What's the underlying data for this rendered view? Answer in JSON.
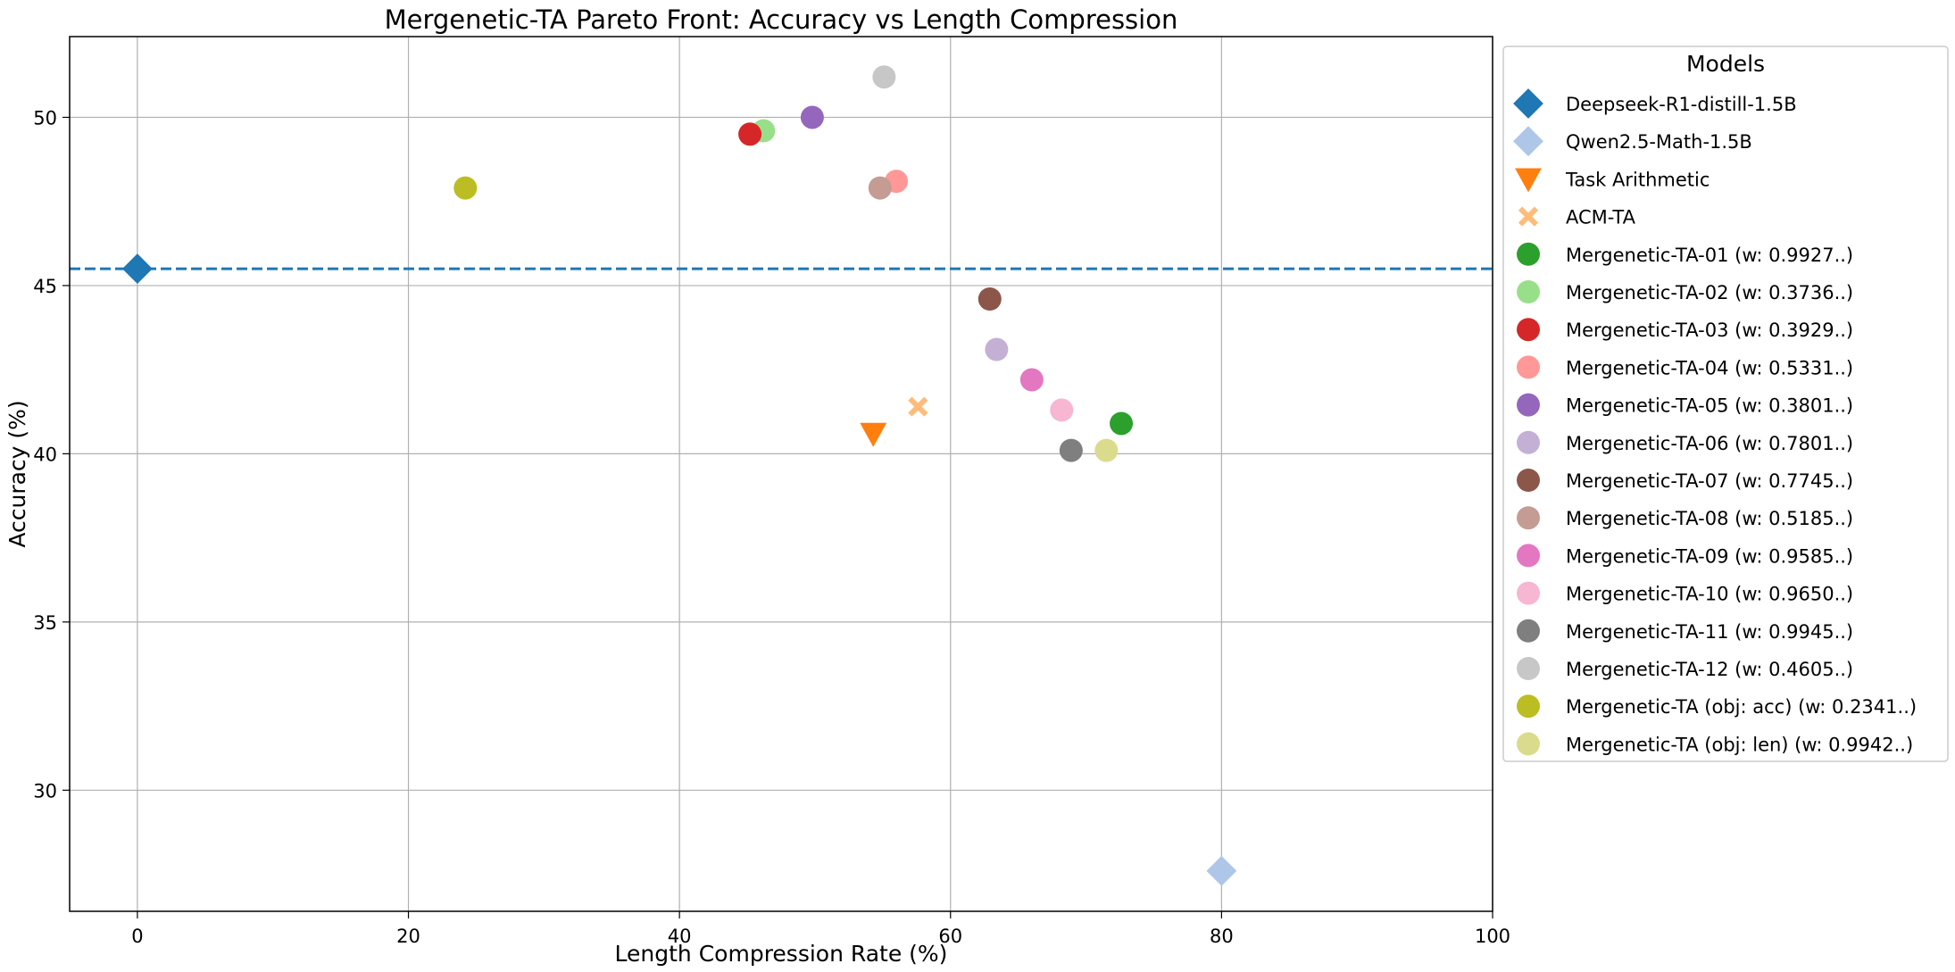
{
  "chart_data": {
    "type": "scatter",
    "title": "Mergenetic-TA Pareto Front: Accuracy vs Length Compression",
    "xlabel": "Length Compression Rate (%)",
    "ylabel": "Accuracy (%)",
    "xlim": [
      -5,
      100
    ],
    "ylim": [
      26.4,
      52.4
    ],
    "xticks": [
      0,
      20,
      40,
      60,
      80,
      100
    ],
    "yticks": [
      30,
      35,
      40,
      45,
      50
    ],
    "grid": true,
    "legend_title": "Models",
    "legend_position": "outside-right",
    "reference_line": {
      "y": 45.5,
      "style": "dashed",
      "color": "#1f77b4"
    },
    "series": [
      {
        "name": "Deepseek-R1-distill-1.5B",
        "marker": "diamond",
        "color": "#1f77b4",
        "x": 0,
        "y": 45.5
      },
      {
        "name": "Qwen2.5-Math-1.5B",
        "marker": "diamond",
        "color": "#aec7e8",
        "x": 80,
        "y": 27.6
      },
      {
        "name": "Task Arithmetic",
        "marker": "triangle-down",
        "color": "#ff7f0e",
        "x": 54.3,
        "y": 40.6
      },
      {
        "name": "ACM-TA",
        "marker": "x",
        "color": "#ffbb78",
        "x": 57.6,
        "y": 41.4
      },
      {
        "name": "Mergenetic-TA-01 (w: 0.9927..)",
        "marker": "circle",
        "color": "#2ca02c",
        "x": 72.6,
        "y": 40.9
      },
      {
        "name": "Mergenetic-TA-02 (w: 0.3736..)",
        "marker": "circle",
        "color": "#98df8a",
        "x": 46.2,
        "y": 49.6
      },
      {
        "name": "Mergenetic-TA-03 (w: 0.3929..)",
        "marker": "circle",
        "color": "#d62728",
        "x": 45.2,
        "y": 49.5
      },
      {
        "name": "Mergenetic-TA-04 (w: 0.5331..)",
        "marker": "circle",
        "color": "#ff9896",
        "x": 56.0,
        "y": 48.1
      },
      {
        "name": "Mergenetic-TA-05 (w: 0.3801..)",
        "marker": "circle",
        "color": "#9467bd",
        "x": 49.8,
        "y": 50.0
      },
      {
        "name": "Mergenetic-TA-06 (w: 0.7801..)",
        "marker": "circle",
        "color": "#c5b0d5",
        "x": 63.4,
        "y": 43.1
      },
      {
        "name": "Mergenetic-TA-07 (w: 0.7745..)",
        "marker": "circle",
        "color": "#8c564b",
        "x": 62.9,
        "y": 44.6
      },
      {
        "name": "Mergenetic-TA-08 (w: 0.5185..)",
        "marker": "circle",
        "color": "#c49c94",
        "x": 54.8,
        "y": 47.9
      },
      {
        "name": "Mergenetic-TA-09 (w: 0.9585..)",
        "marker": "circle",
        "color": "#e377c2",
        "x": 66.0,
        "y": 42.2
      },
      {
        "name": "Mergenetic-TA-10 (w: 0.9650..)",
        "marker": "circle",
        "color": "#f7b6d2",
        "x": 68.2,
        "y": 41.3
      },
      {
        "name": "Mergenetic-TA-11 (w: 0.9945..)",
        "marker": "circle",
        "color": "#7f7f7f",
        "x": 68.9,
        "y": 40.1
      },
      {
        "name": "Mergenetic-TA-12 (w: 0.4605..)",
        "marker": "circle",
        "color": "#c7c7c7",
        "x": 55.1,
        "y": 51.2
      },
      {
        "name": "Mergenetic-TA (obj: acc) (w: 0.2341..)",
        "marker": "circle",
        "color": "#bcbd22",
        "x": 24.2,
        "y": 47.9
      },
      {
        "name": "Mergenetic-TA (obj: len) (w: 0.9942..)",
        "marker": "circle",
        "color": "#dbdb8d",
        "x": 71.5,
        "y": 40.1
      }
    ]
  }
}
